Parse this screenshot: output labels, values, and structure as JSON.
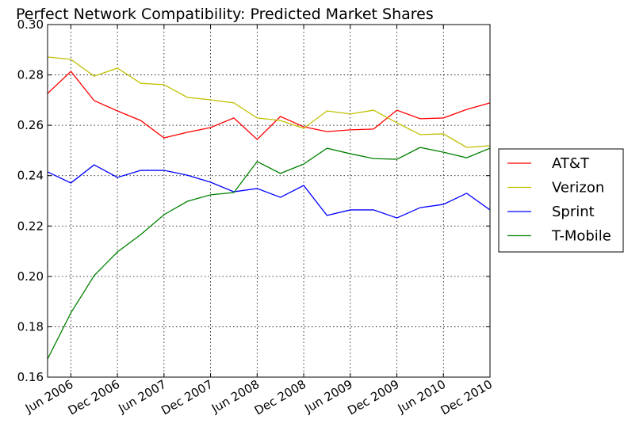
{
  "chart_data": {
    "type": "line",
    "title": "Perfect Network Compatibility: Predicted Market Shares",
    "x": [
      "2006-03",
      "2006-06",
      "2006-09",
      "2006-12",
      "2007-03",
      "2007-06",
      "2007-09",
      "2007-12",
      "2008-03",
      "2008-06",
      "2008-09",
      "2008-12",
      "2009-03",
      "2009-06",
      "2009-09",
      "2009-12",
      "2010-03",
      "2010-06",
      "2010-09",
      "2010-12"
    ],
    "xlim": [
      "2006-03",
      "2010-12"
    ],
    "xticks": [
      {
        "value": "2006-06",
        "label": "Jun 2006"
      },
      {
        "value": "2006-12",
        "label": "Dec 2006"
      },
      {
        "value": "2007-06",
        "label": "Jun 2007"
      },
      {
        "value": "2007-12",
        "label": "Dec 2007"
      },
      {
        "value": "2008-06",
        "label": "Jun 2008"
      },
      {
        "value": "2008-12",
        "label": "Dec 2008"
      },
      {
        "value": "2009-06",
        "label": "Jun 2009"
      },
      {
        "value": "2009-12",
        "label": "Dec 2009"
      },
      {
        "value": "2010-06",
        "label": "Jun 2010"
      },
      {
        "value": "2010-12",
        "label": "Dec 2010"
      }
    ],
    "ylim": [
      0.16,
      0.3
    ],
    "yticks": [
      0.16,
      0.18,
      {
        "value": 0.2,
        "label": "0.20"
      },
      0.22,
      0.24,
      0.26,
      0.28,
      {
        "value": 0.3,
        "label": "0.30"
      }
    ],
    "grid": true,
    "legend": "outside right",
    "series": [
      {
        "name": "AT&T",
        "color": "#ff0000",
        "values": [
          0.2726,
          0.2814,
          0.2698,
          0.2657,
          0.2619,
          0.255,
          0.2572,
          0.2591,
          0.2629,
          0.2544,
          0.2635,
          0.2594,
          0.2575,
          0.2582,
          0.2585,
          0.266,
          0.2626,
          0.2629,
          0.2663,
          0.2689
        ]
      },
      {
        "name": "Verizon",
        "color": "#bfbf00",
        "values": [
          0.2871,
          0.2862,
          0.2795,
          0.2827,
          0.2767,
          0.2761,
          0.2711,
          0.2701,
          0.2689,
          0.2629,
          0.2619,
          0.2588,
          0.2657,
          0.2645,
          0.266,
          0.261,
          0.2563,
          0.2566,
          0.2512,
          0.2519
        ]
      },
      {
        "name": "Sprint",
        "color": "#0000ff",
        "values": [
          0.2415,
          0.2371,
          0.2443,
          0.2393,
          0.2421,
          0.2421,
          0.2402,
          0.2374,
          0.2336,
          0.2349,
          0.2314,
          0.2361,
          0.2242,
          0.2264,
          0.2264,
          0.2232,
          0.2273,
          0.2286,
          0.233,
          0.2264
        ]
      },
      {
        "name": "T-Mobile",
        "color": "#008000",
        "values": [
          0.1672,
          0.1855,
          0.2003,
          0.2097,
          0.2166,
          0.2245,
          0.2298,
          0.2324,
          0.2333,
          0.2456,
          0.2409,
          0.2446,
          0.2509,
          0.2487,
          0.2468,
          0.2465,
          0.2512,
          0.2493,
          0.2471,
          0.2509
        ]
      }
    ]
  }
}
